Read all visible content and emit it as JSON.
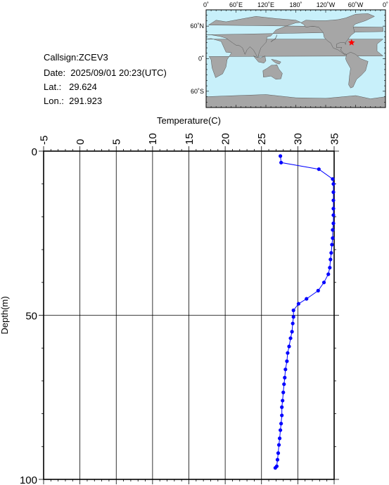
{
  "station": {
    "callsign": "Callsign:ZCEV3",
    "date": "Date:  2025/09/01 20:23(UTC)",
    "lat": "Lat.:   29.624",
    "lon": "Lon.:  291.923"
  },
  "map": {
    "top_labels": [
      "0˚",
      "60˚E",
      "120˚E",
      "180˚",
      "120˚W",
      "60˚W",
      "0˚"
    ],
    "side_labels": [
      "60˚N",
      "0˚",
      "60˚S"
    ],
    "marker_lon": 291.923,
    "marker_lat": 29.624,
    "ocean_color": "#c8f0fa",
    "land_color": "#a6a6a6",
    "marker_color": "#ff0000"
  },
  "chart_data": {
    "type": "line",
    "xlabel": "Temperature(C)",
    "ylabel": "Depth(m)",
    "xlim": [
      -5,
      35
    ],
    "ylim": [
      100,
      0
    ],
    "x_ticks": [
      -5,
      0,
      5,
      10,
      15,
      20,
      25,
      30,
      35
    ],
    "y_ticks": [
      0,
      50,
      100
    ],
    "grid": true,
    "series_color": "#0000ff",
    "series": [
      {
        "temperature": [
          27.6,
          27.7,
          32.9,
          34.8,
          34.9,
          34.9,
          34.9,
          34.9,
          34.9,
          34.9,
          34.8,
          34.8,
          34.7,
          34.6,
          34.5,
          34.4,
          34.2,
          33.6,
          32.8,
          31.2,
          30.1,
          29.4,
          29.4,
          29.3,
          29.2,
          29.0,
          28.8,
          28.6,
          28.5,
          28.3,
          28.2,
          28.1,
          28.0,
          27.9,
          27.8,
          27.8,
          27.7,
          27.6,
          27.5,
          27.4,
          27.3,
          27.2,
          27.1,
          26.9
        ],
        "depth": [
          1.5,
          3.5,
          5.5,
          8.5,
          10.0,
          12.5,
          15.0,
          17.5,
          19.5,
          22.0,
          24.0,
          26.5,
          28.5,
          31.0,
          33.0,
          35.5,
          37.5,
          40.0,
          42.5,
          45.0,
          46.5,
          48.5,
          50.5,
          52.5,
          55.0,
          57.0,
          59.5,
          61.5,
          64.0,
          66.5,
          69.0,
          71.0,
          73.5,
          76.0,
          78.0,
          80.5,
          83.0,
          85.0,
          87.5,
          89.5,
          92.0,
          94.0,
          96.0,
          96.5
        ]
      }
    ]
  }
}
